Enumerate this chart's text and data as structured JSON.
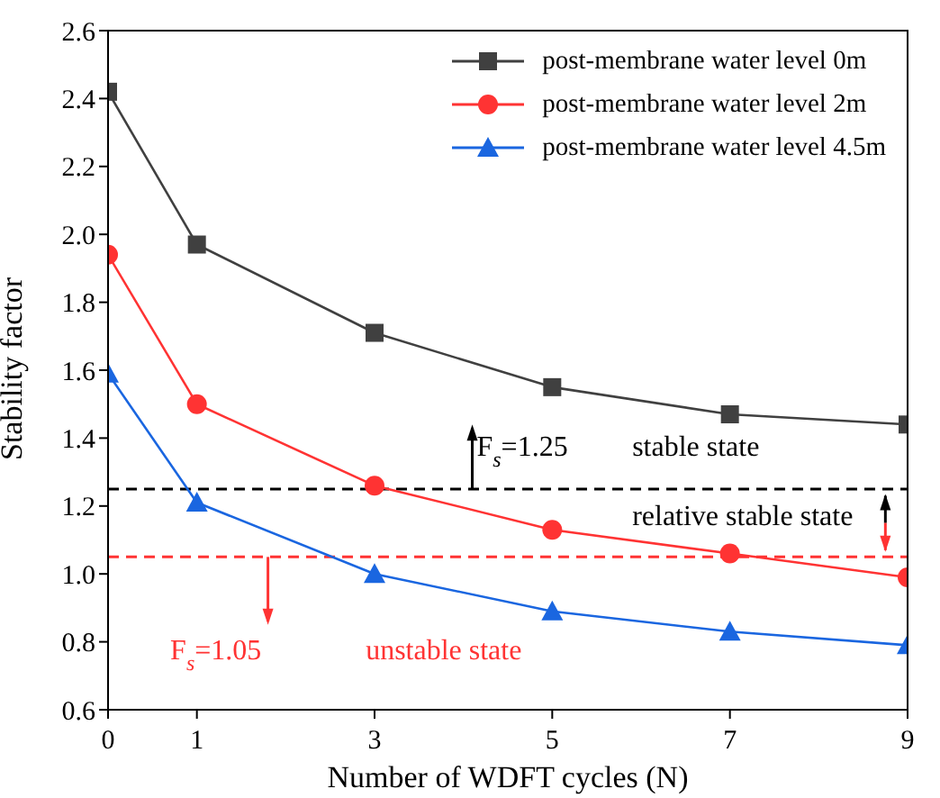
{
  "chart_data": {
    "type": "line",
    "xlabel": "Number of WDFT cycles (N)",
    "ylabel": "Stability factor",
    "x": [
      0,
      1,
      3,
      5,
      7,
      9
    ],
    "series": [
      {
        "name": "post-membrane water level 0m",
        "color": "#404040",
        "marker": "square",
        "values": [
          2.42,
          1.97,
          1.71,
          1.55,
          1.47,
          1.44
        ]
      },
      {
        "name": "post-membrane water level 2m",
        "color": "#ff3333",
        "marker": "circle",
        "values": [
          1.94,
          1.5,
          1.26,
          1.13,
          1.06,
          0.99
        ]
      },
      {
        "name": "post-membrane water level 4.5m",
        "color": "#1a66e0",
        "marker": "triangle",
        "values": [
          1.59,
          1.21,
          1.0,
          0.89,
          0.83,
          0.79
        ]
      }
    ],
    "xlim": [
      0,
      9
    ],
    "xticks": [
      0,
      1,
      3,
      5,
      7,
      9
    ],
    "ylim": [
      0.6,
      2.6
    ],
    "yticks": [
      0.6,
      0.8,
      {
        "value": 1,
        "label": "1.0"
      },
      1.2,
      1.4,
      1.6,
      1.8,
      {
        "value": 2,
        "label": "2.0"
      },
      2.2,
      2.4,
      2.6
    ],
    "ref_lines": [
      {
        "axis": "y",
        "value": 1.25,
        "color": "#000000",
        "line_style": "dashed",
        "label": "F$_{s}$=1.25"
      },
      {
        "axis": "y",
        "value": 1.05,
        "color": "#ff3333",
        "line_style": "dashed",
        "label": "F$_{s}$=1.05"
      }
    ],
    "annotations": [
      "stable state",
      "relative stable state",
      "unstable state"
    ],
    "legend": "top right",
    "grid": false,
    "line_style": "solid"
  }
}
